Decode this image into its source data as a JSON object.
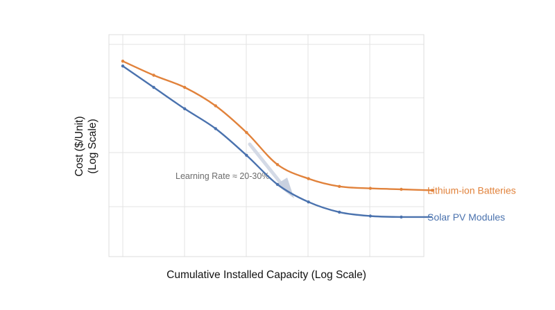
{
  "chart_data": {
    "type": "line",
    "title": "",
    "xlabel": "Cumulative Installed Capacity (Log Scale)",
    "ylabel_lines": [
      "Cost ($/Unit)",
      "(Log Scale)"
    ],
    "x_scale": "log",
    "y_scale": "log",
    "x_tick_labels": [],
    "y_tick_labels": [],
    "grid": true,
    "legend": "inline-right",
    "annotation": {
      "text": "Learning Rate ≈ 20-30%"
    },
    "series": [
      {
        "name": "Lithium-ion Batteries",
        "color": "#E1823B",
        "x": [
          0,
          1,
          2,
          3,
          4,
          5,
          6,
          7,
          8,
          9,
          10
        ],
        "y": [
          3.64,
          3.35,
          3.1,
          2.72,
          2.17,
          1.51,
          1.22,
          1.06,
          1.02,
          1.0,
          0.98
        ]
      },
      {
        "name": "Solar PV Modules",
        "color": "#4A72AE",
        "x": [
          0,
          1,
          2,
          3,
          4,
          5,
          6,
          7,
          8,
          9,
          10
        ],
        "y": [
          3.54,
          3.1,
          2.66,
          2.25,
          1.7,
          1.1,
          0.74,
          0.53,
          0.45,
          0.43,
          0.43
        ]
      }
    ]
  }
}
